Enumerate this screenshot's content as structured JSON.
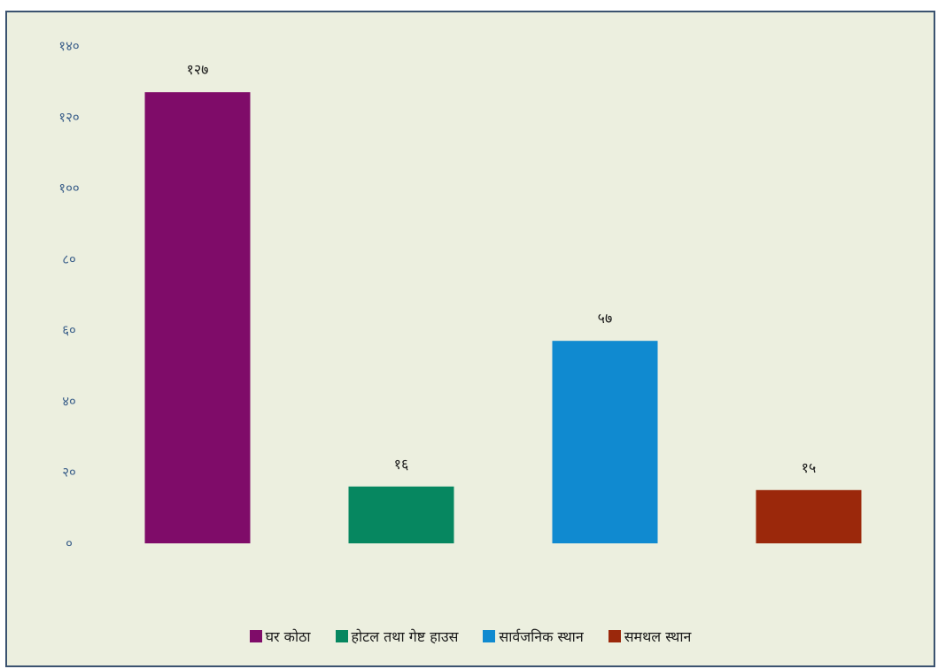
{
  "chart_data": {
    "type": "bar",
    "categories": [
      "घर कोठा",
      "होटल तथा गेष्ट हाउस",
      "सार्वजनिक स्थान",
      "समथल स्थान"
    ],
    "values": [
      127,
      16,
      57,
      15
    ],
    "value_labels": [
      "१२७",
      "१६",
      "५७",
      "१५"
    ],
    "colors": [
      "#7f0c69",
      "#068760",
      "#108ad0",
      "#9b280b"
    ],
    "ylim": [
      0,
      140
    ],
    "yticks": [
      0,
      20,
      40,
      60,
      80,
      100,
      120,
      140
    ],
    "ytick_labels": [
      "०",
      "२०",
      "४०",
      "६०",
      "८०",
      "१००",
      "१२०",
      "१४०"
    ],
    "grid": false,
    "legend_position": "bottom",
    "title": "",
    "xlabel": "",
    "ylabel": ""
  }
}
